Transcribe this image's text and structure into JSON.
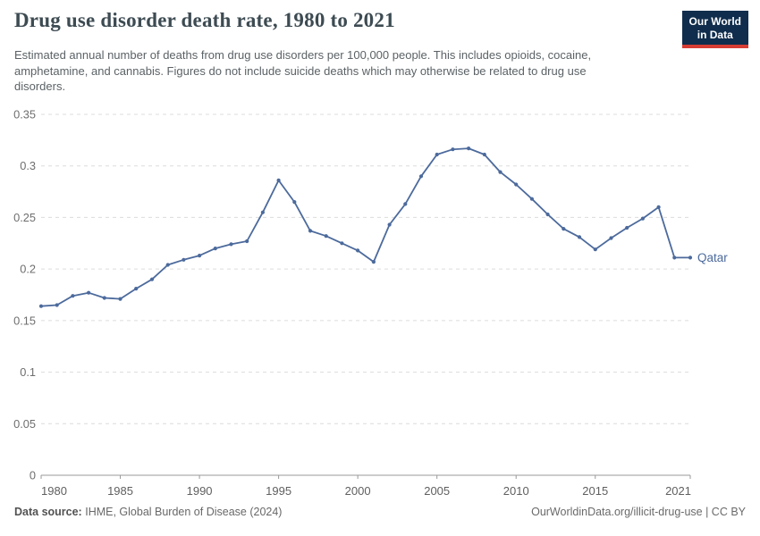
{
  "header": {
    "title": "Drug use disorder death rate, 1980 to 2021",
    "subtitle": "Estimated annual number of deaths from drug use disorders per 100,000 people. This includes opioids, cocaine, amphetamine, and cannabis. Figures do not include suicide deaths which may otherwise be related to drug use disorders.",
    "logo": {
      "line1": "Our World",
      "line2": "in Data",
      "bg_color": "#102d4d",
      "accent_color": "#d73c34"
    }
  },
  "chart_data": {
    "type": "line",
    "title": "Drug use disorder death rate, 1980 to 2021",
    "xlabel": "",
    "ylabel": "",
    "xlim": [
      1980,
      2021
    ],
    "ylim": [
      0,
      0.35
    ],
    "xticks": [
      1980,
      1985,
      1990,
      1995,
      2000,
      2005,
      2010,
      2015,
      2021
    ],
    "yticks": [
      0,
      0.05,
      0.1,
      0.15,
      0.2,
      0.25,
      0.3,
      0.35
    ],
    "grid": "horizontal-dashed",
    "legend": "end-of-line-label",
    "colors": {
      "series": "#4c6a9c",
      "gridline": "#dcdcdc",
      "axis": "#999999",
      "tick_label": "#6e6e6e"
    },
    "series": [
      {
        "name": "Qatar",
        "color": "#4c6a9c",
        "x": [
          1980,
          1981,
          1982,
          1983,
          1984,
          1985,
          1986,
          1987,
          1988,
          1989,
          1990,
          1991,
          1992,
          1993,
          1994,
          1995,
          1996,
          1997,
          1998,
          1999,
          2000,
          2001,
          2002,
          2003,
          2004,
          2005,
          2006,
          2007,
          2008,
          2009,
          2010,
          2011,
          2012,
          2013,
          2014,
          2015,
          2016,
          2017,
          2018,
          2019,
          2020,
          2021
        ],
        "values": [
          0.164,
          0.165,
          0.174,
          0.177,
          0.172,
          0.171,
          0.181,
          0.19,
          0.204,
          0.209,
          0.213,
          0.22,
          0.224,
          0.227,
          0.255,
          0.286,
          0.265,
          0.237,
          0.232,
          0.225,
          0.218,
          0.207,
          0.243,
          0.263,
          0.29,
          0.311,
          0.316,
          0.317,
          0.311,
          0.294,
          0.282,
          0.268,
          0.253,
          0.239,
          0.231,
          0.219,
          0.23,
          0.24,
          0.249,
          0.26,
          0.211,
          0.211
        ]
      }
    ]
  },
  "footer": {
    "source_label": "Data source:",
    "source_value": "IHME, Global Burden of Disease (2024)",
    "attribution": "OurWorldinData.org/illicit-drug-use | CC BY"
  }
}
